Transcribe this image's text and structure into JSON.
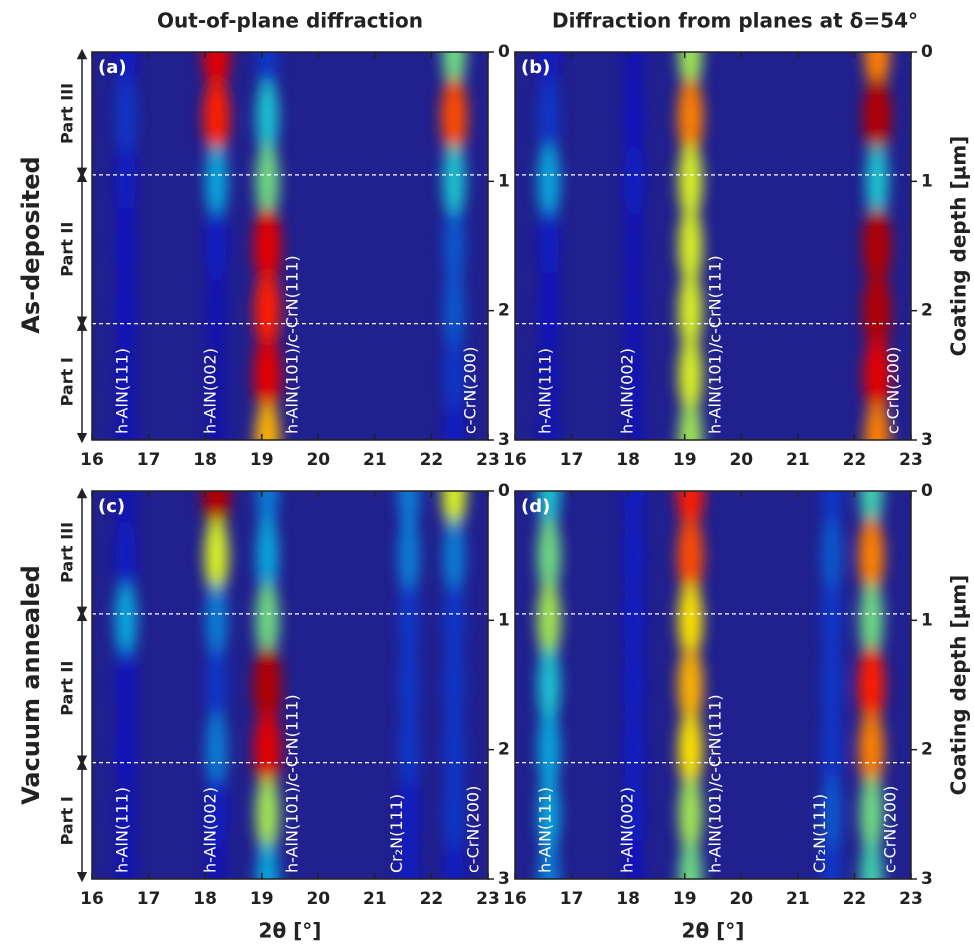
{
  "chart_data": {
    "type": "heatmap",
    "column_titles": [
      "Out-of-plane diffraction",
      "Diffraction from planes at δ=54°"
    ],
    "row_titles": [
      "As-deposited",
      "Vacuum annealed"
    ],
    "x_label": "2θ [°]",
    "y_label": "Coating depth [µm]",
    "xlim": [
      16,
      23
    ],
    "xticks": [
      16,
      17,
      18,
      19,
      20,
      21,
      22,
      23
    ],
    "ylim": [
      0,
      3
    ],
    "yticks": [
      0,
      1,
      2,
      3
    ],
    "y_reversed": true,
    "boundaries": [
      0.95,
      2.1
    ],
    "parts": [
      "Part III",
      "Part II",
      "Part I"
    ],
    "background": "#20208e",
    "depth_samples": [
      0,
      0.5,
      1,
      1.5,
      2,
      2.5,
      3
    ],
    "panels": [
      {
        "label": "(a)",
        "streaks": [
          {
            "x": 16.6,
            "label": "h-AlN(111)",
            "intensity": [
              0.15,
              0.2,
              0.15,
              0.12,
              0.12,
              0.1,
              0.1
            ]
          },
          {
            "x": 18.2,
            "label": "h-AlN(002)",
            "intensity": [
              0.9,
              0.85,
              0.35,
              0.15,
              0.1,
              0.08,
              0.08
            ]
          },
          {
            "x": 19.1,
            "label": "h-AlN(101)/c-CrN(111)",
            "intensity": [
              0.2,
              0.4,
              0.5,
              0.9,
              0.85,
              0.9,
              0.7
            ]
          },
          {
            "x": 22.4,
            "label": "c-CrN(200)",
            "intensity": [
              0.5,
              0.8,
              0.4,
              0.25,
              0.25,
              0.2,
              0.15
            ]
          }
        ]
      },
      {
        "label": "(b)",
        "streaks": [
          {
            "x": 16.6,
            "label": "h-AlN(111)",
            "intensity": [
              0.15,
              0.2,
              0.35,
              0.15,
              0.12,
              0.1,
              0.1
            ]
          },
          {
            "x": 18.1,
            "label": "h-AlN(002)",
            "intensity": [
              0.1,
              0.12,
              0.15,
              0.1,
              0.1,
              0.1,
              0.1
            ]
          },
          {
            "x": 19.1,
            "label": "h-AlN(101)/c-CrN(111)",
            "intensity": [
              0.55,
              0.75,
              0.6,
              0.6,
              0.6,
              0.6,
              0.55
            ]
          },
          {
            "x": 22.4,
            "label": "c-CrN(200)",
            "intensity": [
              0.75,
              0.95,
              0.4,
              0.95,
              0.95,
              0.9,
              0.75
            ]
          }
        ]
      },
      {
        "label": "(c)",
        "streaks": [
          {
            "x": 16.6,
            "label": "h-AlN(111)",
            "intensity": [
              0.1,
              0.15,
              0.35,
              0.12,
              0.12,
              0.1,
              0.1
            ]
          },
          {
            "x": 18.2,
            "label": "h-AlN(002)",
            "intensity": [
              0.95,
              0.6,
              0.3,
              0.2,
              0.3,
              0.15,
              0.1
            ]
          },
          {
            "x": 19.1,
            "label": "h-AlN(101)/c-CrN(111)",
            "intensity": [
              0.3,
              0.35,
              0.5,
              0.95,
              0.9,
              0.55,
              0.35
            ]
          },
          {
            "x": 21.6,
            "label": "Cr₂N(111)",
            "intensity": [
              0.3,
              0.3,
              0.2,
              0.2,
              0.2,
              0.15,
              0.15
            ]
          },
          {
            "x": 22.4,
            "label": "c-CrN(200)",
            "intensity": [
              0.6,
              0.3,
              0.2,
              0.2,
              0.2,
              0.2,
              0.15
            ]
          }
        ]
      },
      {
        "label": "(d)",
        "streaks": [
          {
            "x": 16.6,
            "label": "h-AlN(111)",
            "intensity": [
              0.4,
              0.5,
              0.55,
              0.4,
              0.35,
              0.35,
              0.3
            ]
          },
          {
            "x": 18.1,
            "label": "h-AlN(002)",
            "intensity": [
              0.15,
              0.15,
              0.15,
              0.15,
              0.15,
              0.15,
              0.12
            ]
          },
          {
            "x": 19.1,
            "label": "h-AlN(101)/c-CrN(111)",
            "intensity": [
              0.85,
              0.8,
              0.65,
              0.7,
              0.65,
              0.55,
              0.5
            ]
          },
          {
            "x": 21.6,
            "label": "Cr₂N(111)",
            "intensity": [
              0.2,
              0.25,
              0.2,
              0.2,
              0.2,
              0.25,
              0.2
            ]
          },
          {
            "x": 22.3,
            "label": "c-CrN(200)",
            "intensity": [
              0.45,
              0.75,
              0.5,
              0.85,
              0.75,
              0.5,
              0.45
            ]
          }
        ]
      }
    ]
  }
}
